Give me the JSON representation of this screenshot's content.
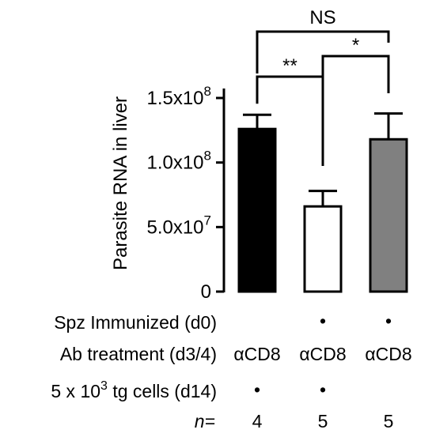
{
  "chart_data": {
    "type": "bar",
    "ylabel": "Parasite RNA in liver",
    "ylim": [
      0,
      160000000
    ],
    "yticks": [
      {
        "value": 0,
        "mantissa": "0",
        "exp": ""
      },
      {
        "value": 50000000,
        "mantissa": "5.0x10",
        "exp": "7"
      },
      {
        "value": 100000000,
        "mantissa": "1.0x10",
        "exp": "8"
      },
      {
        "value": 150000000,
        "mantissa": "1.5x10",
        "exp": "8"
      }
    ],
    "bars": [
      {
        "value": 126000000,
        "error": 11000000,
        "color": "#000000"
      },
      {
        "value": 66000000,
        "error": 12000000,
        "color": "#ffffff"
      },
      {
        "value": 118000000,
        "error": 20000000,
        "color": "#808080"
      }
    ],
    "significance": [
      {
        "from": 0,
        "to": 2,
        "label": "NS"
      },
      {
        "from": 0,
        "to": 1,
        "label": "**"
      },
      {
        "from": 1,
        "to": 2,
        "label": "*"
      }
    ],
    "table": {
      "rows": [
        {
          "label": "Spz Immunized (d0)",
          "cells": [
            "",
            "•",
            "•"
          ]
        },
        {
          "label": "Ab treatment (d3/4)",
          "cells": [
            "αCD8",
            "αCD8",
            "αCD8"
          ]
        },
        {
          "label_pre": "5 x 10",
          "label_sup": "3",
          "label_post": " tg cells (d14)",
          "cells": [
            "•",
            "•",
            ""
          ]
        },
        {
          "label": "n=",
          "cells": [
            "4",
            "5",
            "5"
          ]
        }
      ]
    }
  }
}
